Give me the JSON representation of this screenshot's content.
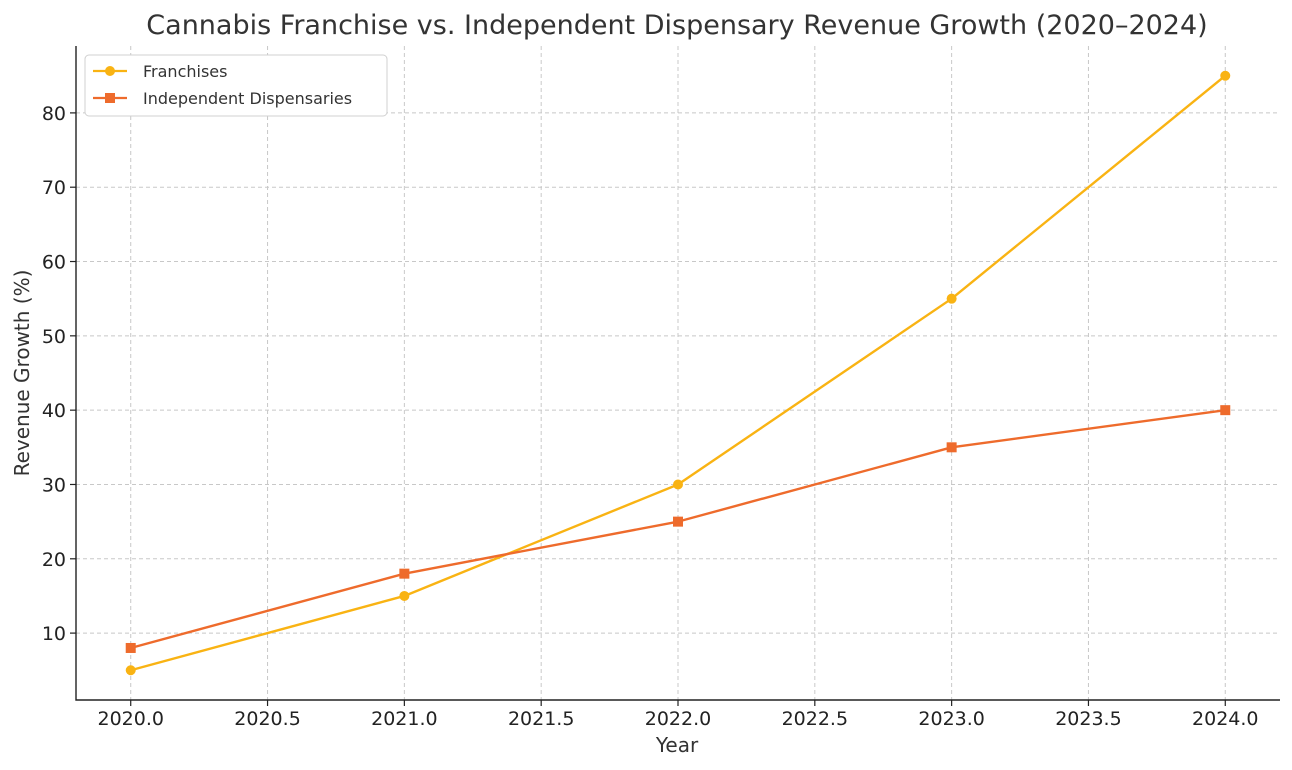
{
  "chart_data": {
    "type": "line",
    "title": "Cannabis Franchise vs. Independent Dispensary Revenue Growth (2020–2024)",
    "xlabel": "Year",
    "ylabel": "Revenue Growth (%)",
    "x": [
      2020,
      2021,
      2022,
      2023,
      2024
    ],
    "xlim": [
      2019.8,
      2024.2
    ],
    "ylim": [
      1,
      89
    ],
    "x_ticks": [
      "2020.0",
      "2020.5",
      "2021.0",
      "2021.5",
      "2022.0",
      "2022.5",
      "2023.0",
      "2023.5",
      "2024.0"
    ],
    "y_ticks": [
      "10",
      "20",
      "30",
      "40",
      "50",
      "60",
      "70",
      "80"
    ],
    "grid": true,
    "legend_position": "top-left",
    "series": [
      {
        "name": "Franchises",
        "values": [
          5,
          15,
          30,
          55,
          85
        ],
        "color": "#F9B313",
        "marker": "circle"
      },
      {
        "name": "Independent Dispensaries",
        "values": [
          8,
          18,
          25,
          35,
          40
        ],
        "color": "#EE6B2C",
        "marker": "square"
      }
    ]
  }
}
